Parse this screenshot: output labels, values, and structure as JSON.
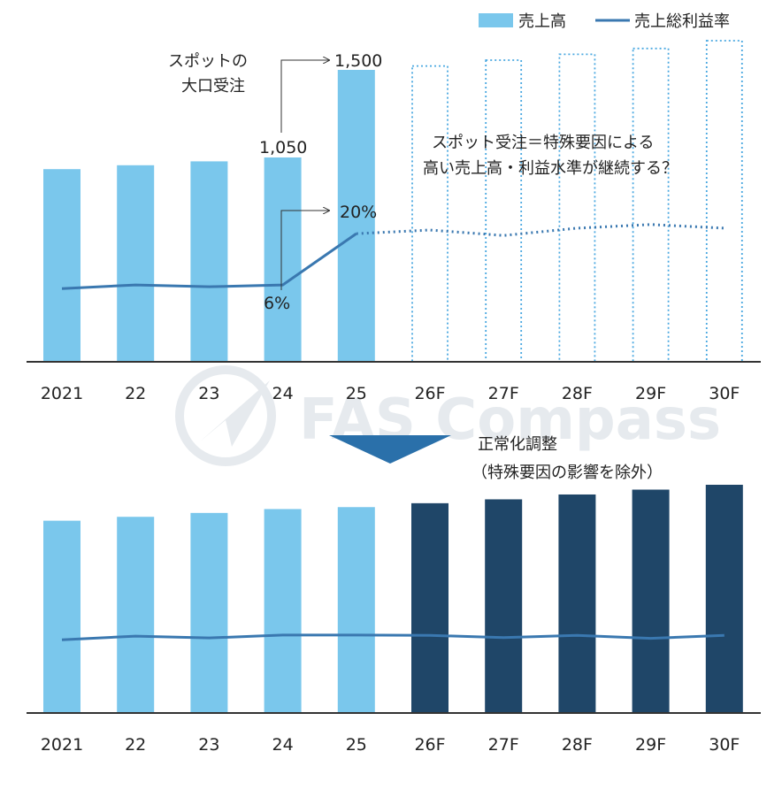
{
  "colors": {
    "actual_bar": "#7ac7ec",
    "forecast_bar": "#1f4668",
    "line": "#3a78b0",
    "forecast_outline": "#4aa8e0",
    "axis": "#333333",
    "arrow": "#2a70aa",
    "watermark": "#e6eaee"
  },
  "legend": {
    "bar_label": "売上高",
    "line_label": "売上総利益率"
  },
  "watermark": {
    "text": "FAS Compass"
  },
  "chart_data": [
    {
      "type": "bar",
      "panel": "top",
      "categories": [
        "2021",
        "22",
        "23",
        "24",
        "25",
        "26F",
        "27F",
        "28F",
        "29F",
        "30F"
      ],
      "forecast_from_index": 5,
      "series": [
        {
          "name": "売上高",
          "kind": "bar",
          "values": [
            990,
            1010,
            1030,
            1050,
            1500,
            1520,
            1550,
            1580,
            1610,
            1650
          ]
        },
        {
          "name": "売上総利益率",
          "kind": "line",
          "values": [
            5,
            6,
            5.5,
            6,
            20,
            21,
            19.5,
            21.5,
            22.5,
            21.5
          ]
        }
      ],
      "data_labels": {
        "bar_24": "1,050",
        "bar_25": "1,500",
        "line_24": "6%",
        "line_25": "20%"
      },
      "annotations": {
        "spot_line1": "スポットの",
        "spot_line2": "大口受注",
        "question_line1": "スポット受注＝特殊要因による",
        "question_line2": "高い売上高・利益水準が継続する？"
      },
      "ylim": [
        0,
        1650
      ],
      "line_ylim": [
        -15,
        50
      ]
    },
    {
      "type": "bar",
      "panel": "bottom",
      "categories": [
        "2021",
        "22",
        "23",
        "24",
        "25",
        "26F",
        "27F",
        "28F",
        "29F",
        "30F"
      ],
      "forecast_from_index": 5,
      "series": [
        {
          "name": "売上高",
          "kind": "bar",
          "values": [
            990,
            1010,
            1030,
            1050,
            1060,
            1080,
            1100,
            1125,
            1150,
            1175
          ]
        },
        {
          "name": "売上総利益率",
          "kind": "line",
          "values": [
            5,
            6,
            5.5,
            6.3,
            6.3,
            6.2,
            5.6,
            6.2,
            5.4,
            6.2
          ]
        }
      ],
      "annotations": {
        "normalize_line1": "正常化調整",
        "normalize_line2": "（特殊要因の影響を除外）"
      },
      "ylim": [
        0,
        1175
      ],
      "line_ylim": [
        -15,
        50
      ]
    }
  ]
}
